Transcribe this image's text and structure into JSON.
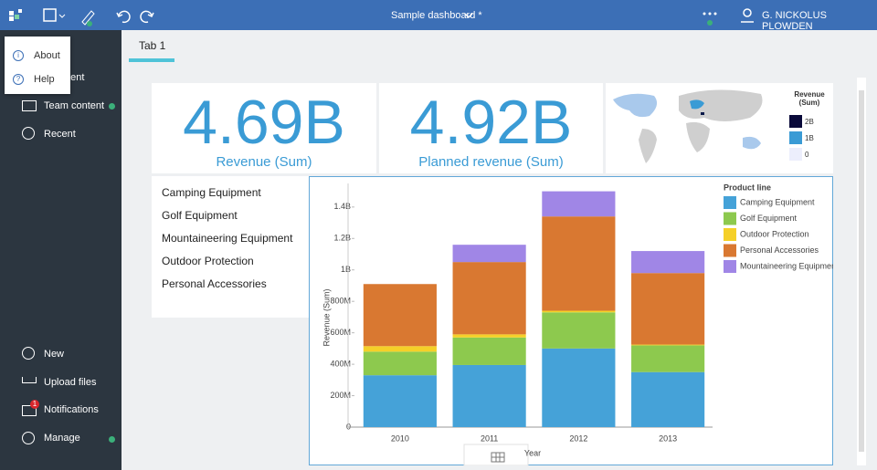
{
  "topbar": {
    "title": "Sample dashboard *",
    "user": "G. NICKOLUS PLOWDEN"
  },
  "popup_menu": {
    "items": [
      "About",
      "Help"
    ]
  },
  "sidebar": {
    "top_items": [
      "ntent",
      "Team content",
      "Recent"
    ],
    "bottom_items": [
      "New",
      "Upload files",
      "Notifications",
      "Manage"
    ],
    "notification_badge": "1"
  },
  "tabs": [
    "Tab 1"
  ],
  "kpis": [
    {
      "value": "4.69B",
      "label": "Revenue (Sum)"
    },
    {
      "value": "4.92B",
      "label": "Planned revenue (Sum)"
    }
  ],
  "map_legend": {
    "title": "Revenue (Sum)",
    "labels": [
      "2B",
      "1B",
      "0"
    ]
  },
  "product_list": [
    "Camping Equipment",
    "Golf Equipment",
    "Mountaineering Equipment",
    "Outdoor Protection",
    "Personal Accessories"
  ],
  "chart_data": {
    "type": "bar",
    "stacked": true,
    "y_label": "Revenue (Sum)",
    "x_label": "Year",
    "legend_title": "Product line",
    "categories": [
      "2010",
      "2011",
      "2012",
      "2013"
    ],
    "series": [
      {
        "name": "Camping Equipment",
        "color": "#45a2d8",
        "values": [
          330000000,
          395000000,
          500000000,
          350000000
        ]
      },
      {
        "name": "Golf Equipment",
        "color": "#8dc94e",
        "values": [
          150000000,
          175000000,
          230000000,
          170000000
        ]
      },
      {
        "name": "Outdoor Protection",
        "color": "#f5d028",
        "values": [
          35000000,
          20000000,
          10000000,
          5000000
        ]
      },
      {
        "name": "Personal Accessories",
        "color": "#d97831",
        "values": [
          395000000,
          460000000,
          600000000,
          455000000
        ]
      },
      {
        "name": "Mountaineering Equipment",
        "color": "#a086e6",
        "values": [
          0,
          110000000,
          160000000,
          140000000
        ]
      }
    ],
    "ylim": [
      0,
      1550000000
    ],
    "yticks": [
      0,
      {
        "value": 200000000,
        "label": "200M"
      },
      {
        "value": 400000000,
        "label": "400M"
      },
      {
        "value": 600000000,
        "label": "600M"
      },
      {
        "value": 800000000,
        "label": "800M"
      },
      {
        "value": 1000000000,
        "label": "1B"
      },
      {
        "value": 1200000000,
        "label": "1.2B"
      },
      {
        "value": 1400000000,
        "label": "1.4B"
      }
    ],
    "grid": false
  }
}
